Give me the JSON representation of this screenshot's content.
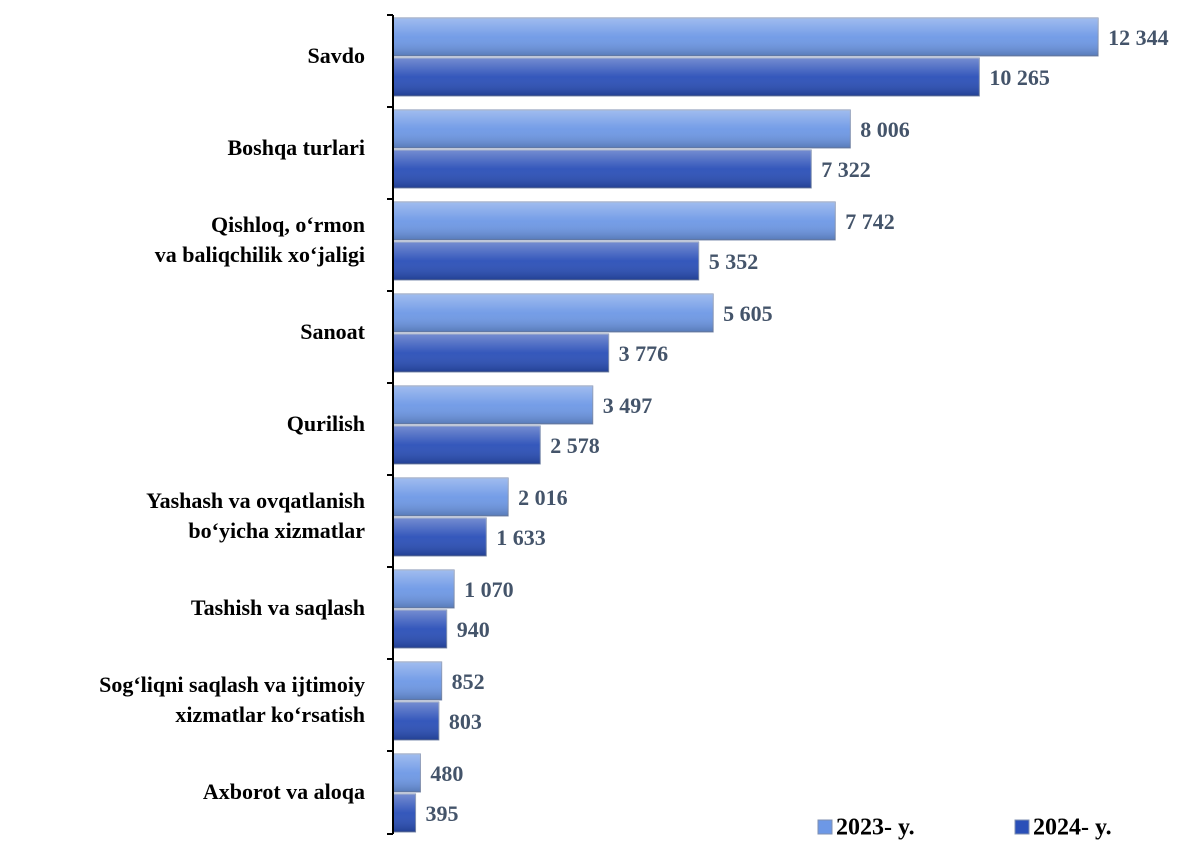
{
  "chart_data": {
    "type": "bar",
    "orientation": "horizontal",
    "categories": [
      "Savdo",
      "Boshqa turlari",
      "Qishloq, o‘rmon\nva baliqchilik xo‘jaligi",
      "Sanoat",
      "Qurilish",
      "Yashash va ovqatlanish\nbo‘yicha xizmatlar",
      "Tashish va saqlash",
      "Sog‘liqni saqlash va ijtimoiy\nxizmatlar ko‘rsatish",
      "Axborot va aloqa"
    ],
    "series": [
      {
        "name": "2023- y.",
        "color": "#6d98e6",
        "values": [
          12344,
          8006,
          7742,
          5605,
          3497,
          2016,
          1070,
          852,
          480
        ],
        "value_labels": [
          "12 344",
          "8 006",
          "7 742",
          "5 605",
          "3 497",
          "2 016",
          "1 070",
          "852",
          "480"
        ]
      },
      {
        "name": "2024- y.",
        "color": "#2a4fb8",
        "values": [
          10265,
          7322,
          5352,
          3776,
          2578,
          1633,
          940,
          803,
          395
        ],
        "value_labels": [
          "10 265",
          "7 322",
          "5 352",
          "3 776",
          "2 578",
          "1 633",
          "940",
          "803",
          "395"
        ]
      }
    ],
    "xlim": [
      0,
      12500
    ],
    "legend": "bottom-right"
  }
}
